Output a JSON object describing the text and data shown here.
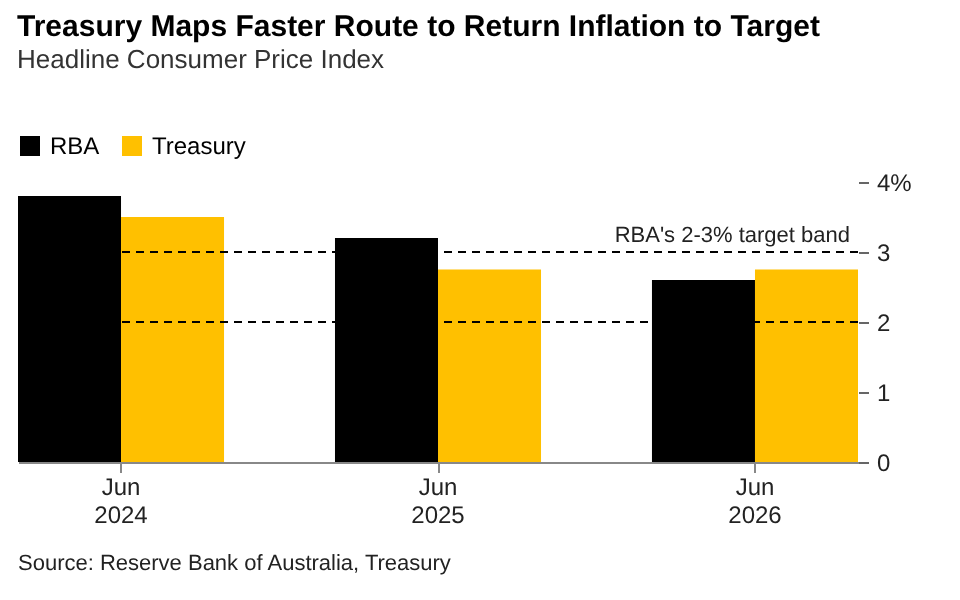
{
  "chart_data": {
    "type": "bar",
    "title": "Treasury Maps Faster Route to Return Inflation to Target",
    "subtitle": "Headline Consumer Price Index",
    "categories": [
      "Jun 2024",
      "Jun 2025",
      "Jun 2026"
    ],
    "series": [
      {
        "name": "RBA",
        "color": "#000000",
        "values": [
          3.8,
          3.2,
          2.6
        ]
      },
      {
        "name": "Treasury",
        "color": "#ffc000",
        "values": [
          3.5,
          2.75,
          2.75
        ]
      }
    ],
    "ylim": [
      0,
      4
    ],
    "yticks": [
      0,
      1,
      2,
      3,
      {
        "value": 4,
        "label": "4%"
      }
    ],
    "ref_lines": [
      {
        "axis": "y",
        "value": 3,
        "label": "RBA's 2-3% target band",
        "line_style": "dashed"
      },
      {
        "axis": "y",
        "value": 2,
        "label": null,
        "line_style": "dashed"
      }
    ],
    "annotations": [
      "Source: Reserve Bank of Australia, Treasury"
    ],
    "legend": "top left",
    "grid": false
  }
}
